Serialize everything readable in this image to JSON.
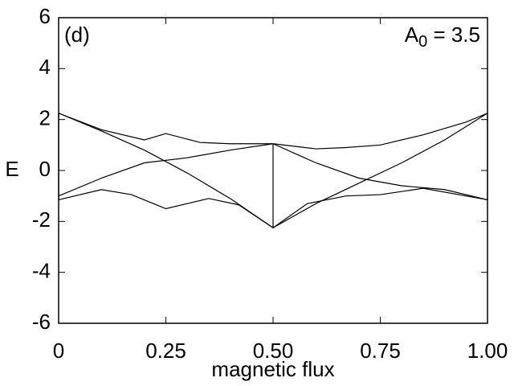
{
  "chart_data": {
    "type": "line",
    "xlabel": "magnetic flux",
    "ylabel": "E",
    "annotations": {
      "panel": "(d)",
      "symbol": "A",
      "subscript": "0",
      "text": " = 3.5"
    },
    "xlim": [
      0,
      1
    ],
    "ylim": [
      -6,
      6
    ],
    "xticks": [
      0,
      0.25,
      {
        "value": 0.5,
        "label": "0.50"
      },
      0.75,
      {
        "value": 1,
        "label": "1.00"
      }
    ],
    "yticks": [
      -6,
      -4,
      -2,
      0,
      2,
      4,
      6
    ],
    "grid": false,
    "series": [
      {
        "color": "#000000",
        "x": [
          0,
          0.1,
          0.2,
          0.25,
          0.33,
          0.4,
          0.5,
          0.6,
          0.67,
          0.75,
          0.85,
          0.95,
          1
        ],
        "values": [
          2.25,
          1.6,
          1.2,
          1.45,
          1.1,
          1.05,
          1.05,
          0.85,
          0.9,
          1.0,
          1.4,
          1.9,
          2.25
        ]
      },
      {
        "color": "#000000",
        "x": [
          0,
          0.1,
          0.17,
          0.25,
          0.35,
          0.42,
          0.5,
          0.58,
          0.67,
          0.75,
          0.85,
          1
        ],
        "values": [
          -1.15,
          -0.75,
          -0.95,
          -1.5,
          -1.1,
          -1.35,
          -2.25,
          -1.3,
          -1.0,
          -0.95,
          -0.7,
          -1.15
        ]
      },
      {
        "color": "#000000",
        "x": [
          0,
          0.1,
          0.2,
          0.3,
          0.4,
          0.5
        ],
        "values": [
          2.25,
          1.55,
          0.8,
          -0.1,
          -1.1,
          -2.25
        ]
      },
      {
        "color": "#000000",
        "x": [
          0.5,
          0.6,
          0.7,
          0.8,
          0.9,
          1
        ],
        "values": [
          -2.25,
          -1.3,
          -0.5,
          0.3,
          1.2,
          2.25
        ]
      },
      {
        "color": "#000000",
        "x": [
          0,
          0.1,
          0.2,
          0.3,
          0.4,
          0.5
        ],
        "values": [
          -1.0,
          -0.3,
          0.3,
          0.5,
          0.8,
          1.05
        ]
      },
      {
        "color": "#000000",
        "x": [
          0.5,
          0.6,
          0.7,
          0.8,
          0.9,
          1
        ],
        "values": [
          1.05,
          0.3,
          -0.3,
          -0.6,
          -0.75,
          -1.15
        ]
      },
      {
        "color": "#000000",
        "x": [
          0.5,
          0.5
        ],
        "values": [
          1.05,
          -2.25
        ]
      },
      {
        "color": "#000000",
        "x": [
          0,
          0
        ],
        "values": [
          2.25,
          -1.15
        ]
      },
      {
        "color": "#000000",
        "x": [
          1,
          1
        ],
        "values": [
          2.25,
          -1.15
        ]
      }
    ]
  }
}
